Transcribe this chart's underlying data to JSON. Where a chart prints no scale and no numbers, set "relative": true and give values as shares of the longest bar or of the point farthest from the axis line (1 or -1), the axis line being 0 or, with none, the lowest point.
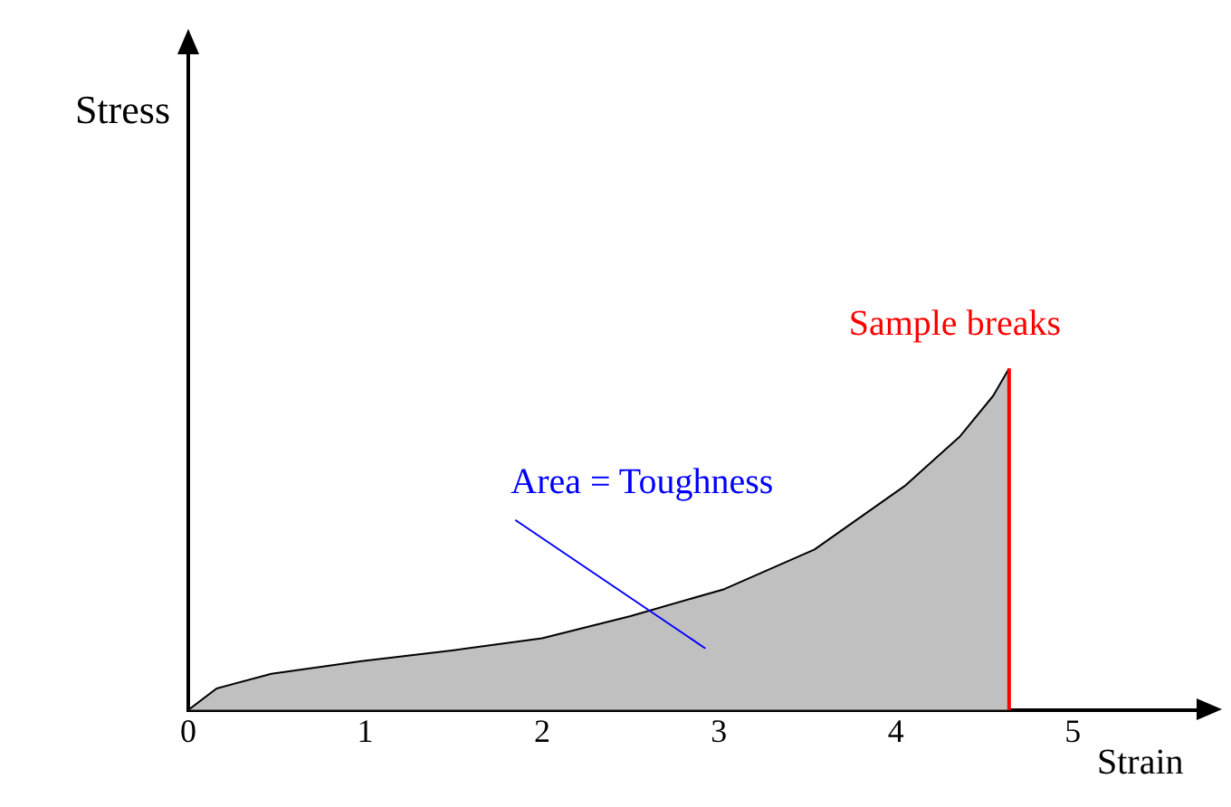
{
  "chart_data": {
    "type": "area",
    "relative": true,
    "xlabel": "Strain",
    "xlim": [
      0,
      5.7
    ],
    "xticks": [
      0,
      1,
      2,
      3,
      4,
      5
    ],
    "grid": false,
    "series": [
      {
        "color": "#c0c0c0",
        "x": [
          0,
          0.16,
          0.47,
          0.98,
          1.5,
          2.0,
          2.5,
          3.03,
          3.54,
          4.05,
          4.36,
          4.55,
          4.64
        ],
        "values": [
          0,
          0.063,
          0.106,
          0.143,
          0.175,
          0.21,
          0.275,
          0.354,
          0.47,
          0.656,
          0.8,
          0.92,
          1
        ]
      }
    ],
    "ref_lines": [
      {
        "axis": "x",
        "value": 4.64,
        "label": "Sample breaks",
        "color": "#ff0000"
      }
    ],
    "annotations": [
      "Area = Toughness",
      "Stress"
    ]
  }
}
